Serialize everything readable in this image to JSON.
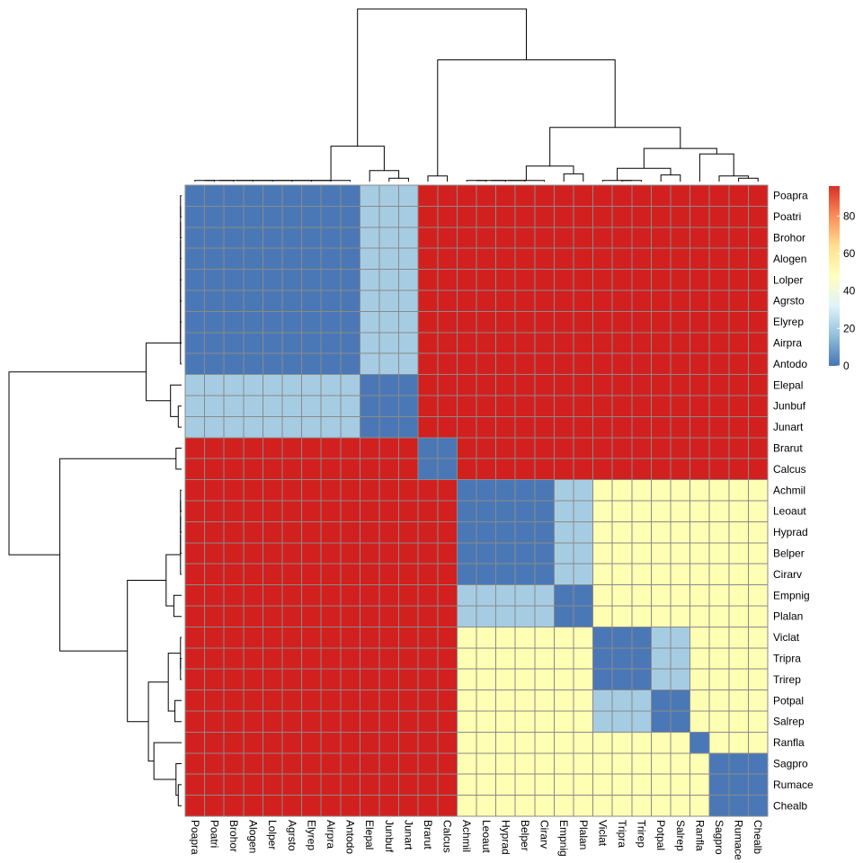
{
  "chart_data": {
    "type": "heatmap",
    "labels": [
      "Poapra",
      "Poatri",
      "Brohor",
      "Alogen",
      "Lolper",
      "Agrsto",
      "Elyrep",
      "Airpra",
      "Antodo",
      "Elepal",
      "Junbuf",
      "Junart",
      "Brarut",
      "Calcus",
      "Achmil",
      "Leoaut",
      "Hyprad",
      "Belper",
      "Cirarv",
      "Empnig",
      "Plalan",
      "Viclat",
      "Tripra",
      "Trirep",
      "Potpal",
      "Salrep",
      "Ranfla",
      "Sagpro",
      "Rumace",
      "Chealb"
    ],
    "clusters": [
      0,
      0,
      0,
      0,
      0,
      0,
      0,
      0,
      0,
      1,
      1,
      1,
      2,
      2,
      3,
      3,
      3,
      3,
      3,
      4,
      4,
      5,
      5,
      5,
      6,
      6,
      7,
      8,
      8,
      8
    ],
    "within_cluster_value": 8,
    "diagonal_value": 0,
    "between_cluster_values": [
      [
        0,
        25,
        95,
        95,
        95,
        95,
        95,
        95,
        95
      ],
      [
        25,
        0,
        95,
        95,
        95,
        95,
        95,
        95,
        95
      ],
      [
        95,
        95,
        0,
        95,
        95,
        95,
        95,
        95,
        95
      ],
      [
        95,
        95,
        95,
        0,
        25,
        45,
        45,
        45,
        45
      ],
      [
        95,
        95,
        95,
        25,
        0,
        45,
        45,
        45,
        45
      ],
      [
        95,
        95,
        95,
        45,
        45,
        0,
        25,
        45,
        45
      ],
      [
        95,
        95,
        95,
        45,
        45,
        25,
        0,
        45,
        45
      ],
      [
        95,
        95,
        95,
        45,
        45,
        45,
        45,
        0,
        45
      ],
      [
        95,
        95,
        95,
        45,
        45,
        45,
        45,
        45,
        0
      ]
    ],
    "legend": {
      "ticks": [
        "0",
        "20",
        "40",
        "60",
        "80"
      ],
      "tick_values": [
        0,
        20,
        40,
        60,
        80
      ],
      "range": [
        0,
        96
      ],
      "colors": [
        "#4575b4",
        "#91bfdb",
        "#e0f3f8",
        "#ffffbf",
        "#fee090",
        "#fc8d59",
        "#d73027"
      ]
    },
    "bin_colors": [
      {
        "max": 15,
        "color": "#4a78b6"
      },
      {
        "max": 35,
        "color": "#a6cce3"
      },
      {
        "max": 60,
        "color": "#ffffb3"
      },
      {
        "max": 100,
        "color": "#d2201f"
      }
    ],
    "cell_border_color": "#8a8a8a",
    "dendrogram": {
      "leaf_order": [
        "Poapra",
        "Poatri",
        "Brohor",
        "Alogen",
        "Lolper",
        "Agrsto",
        "Elyrep",
        "Airpra",
        "Antodo",
        "Elepal",
        "Junbuf",
        "Junart",
        "Brarut",
        "Calcus",
        "Achmil",
        "Leoaut",
        "Hyprad",
        "Belper",
        "Cirarv",
        "Empnig",
        "Plalan",
        "Viclat",
        "Tripra",
        "Trirep",
        "Potpal",
        "Salrep",
        "Ranfla",
        "Sagpro",
        "Rumace",
        "Chealb"
      ],
      "merges": [
        {
          "a": 0,
          "b": 1,
          "h": 1
        },
        {
          "a": "m0",
          "b": 2,
          "h": 1
        },
        {
          "a": "m1",
          "b": 3,
          "h": 1
        },
        {
          "a": "m2",
          "b": 4,
          "h": 1
        },
        {
          "a": "m3",
          "b": 5,
          "h": 1
        },
        {
          "a": "m4",
          "b": 6,
          "h": 1
        },
        {
          "a": "m5",
          "b": 7,
          "h": 1
        },
        {
          "a": "m6",
          "b": 8,
          "h": 1
        },
        {
          "a": 10,
          "b": 11,
          "h": 3
        },
        {
          "a": 9,
          "b": "m8",
          "h": 10
        },
        {
          "a": "m7",
          "b": "m9",
          "h": 32
        },
        {
          "a": 12,
          "b": 13,
          "h": 5
        },
        {
          "a": 14,
          "b": 15,
          "h": 1
        },
        {
          "a": "m12",
          "b": 16,
          "h": 1
        },
        {
          "a": "m13",
          "b": 17,
          "h": 1
        },
        {
          "a": "m14",
          "b": 18,
          "h": 1
        },
        {
          "a": 19,
          "b": 20,
          "h": 7
        },
        {
          "a": "m15",
          "b": "m16",
          "h": 14
        },
        {
          "a": 22,
          "b": 23,
          "h": 1
        },
        {
          "a": 21,
          "b": "m18",
          "h": 1
        },
        {
          "a": 24,
          "b": 25,
          "h": 6
        },
        {
          "a": "m19",
          "b": "m20",
          "h": 12
        },
        {
          "a": 28,
          "b": 29,
          "h": 3
        },
        {
          "a": 27,
          "b": "m22",
          "h": 5
        },
        {
          "a": 26,
          "b": "m23",
          "h": 25
        },
        {
          "a": "m21",
          "b": "m24",
          "h": 30
        },
        {
          "a": "m17",
          "b": "m25",
          "h": 49
        },
        {
          "a": "m11",
          "b": "m26",
          "h": 110
        },
        {
          "a": "m10",
          "b": "m27",
          "h": 156
        }
      ]
    }
  }
}
